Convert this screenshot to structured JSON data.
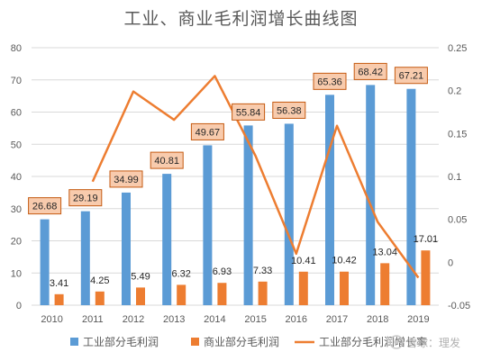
{
  "chart_data": {
    "type": "bar",
    "title": "工业、商业毛利润增长曲线图",
    "categories": [
      "2010",
      "2011",
      "2012",
      "2013",
      "2014",
      "2015",
      "2016",
      "2017",
      "2018",
      "2019"
    ],
    "series": [
      {
        "name": "工业部分毛利润",
        "type": "bar",
        "axis": "left",
        "color": "#5b9bd5",
        "values": [
          26.68,
          29.19,
          34.99,
          40.81,
          49.67,
          55.84,
          56.38,
          65.36,
          68.42,
          67.21
        ]
      },
      {
        "name": "商业部分毛利润",
        "type": "bar",
        "axis": "left",
        "color": "#ed7d31",
        "values": [
          3.41,
          4.25,
          5.49,
          6.32,
          6.93,
          7.33,
          10.41,
          10.42,
          13.04,
          17.01
        ]
      },
      {
        "name": "工业部分毛利润增长率",
        "type": "line",
        "axis": "right",
        "color": "#ed7d31",
        "values": [
          null,
          0.094,
          0.199,
          0.166,
          0.217,
          0.124,
          0.01,
          0.159,
          0.047,
          -0.018
        ]
      }
    ],
    "y_left": {
      "ylim": [
        0,
        80
      ],
      "ticks": [
        "0",
        "10",
        "20",
        "30",
        "40",
        "50",
        "60",
        "70",
        "80"
      ]
    },
    "y_right": {
      "ylim": [
        -0.05,
        0.25
      ],
      "ticks": [
        "-0.05",
        "0",
        "0.05",
        "0.1",
        "0.15",
        "0.2",
        "0.25"
      ]
    },
    "grid": true,
    "legend_position": "bottom",
    "data_label_colors": {
      "industrial_box_fill": "#f8cbad",
      "industrial_box_border": "#c55a11"
    }
  },
  "watermark": {
    "text": "雪球：理发",
    "icon": "snowball-logo-icon"
  }
}
